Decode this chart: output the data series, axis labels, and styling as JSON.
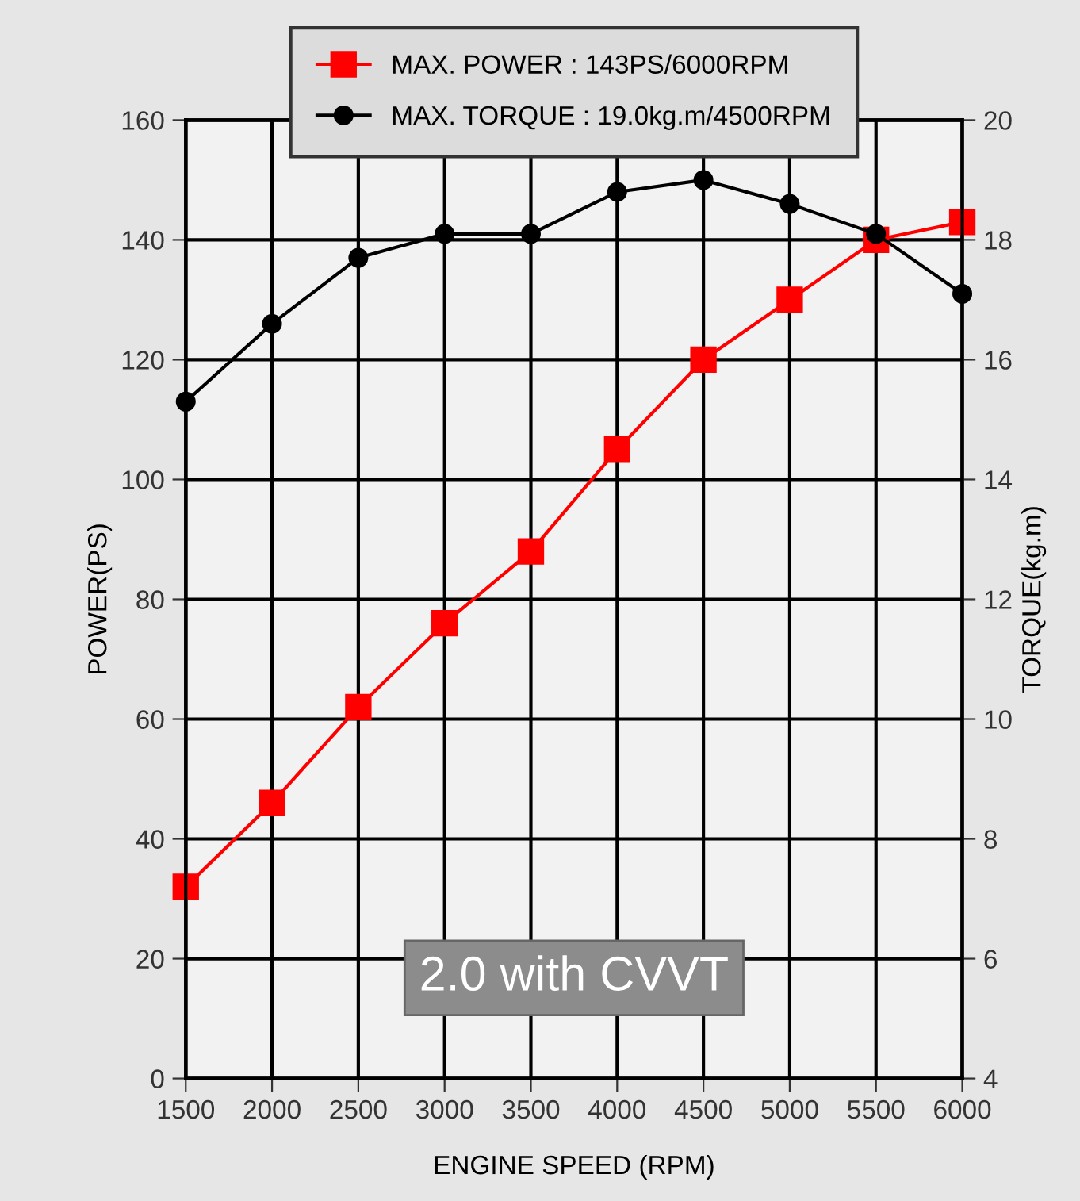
{
  "chart_data": {
    "type": "line",
    "xlabel": "ENGINE SPEED (RPM)",
    "ylabel": "POWER(PS)",
    "y2label": "TORQUE(kg.m)",
    "x": [
      1500,
      2000,
      2500,
      3000,
      3500,
      4000,
      4500,
      5000,
      5500,
      6000
    ],
    "series": [
      {
        "name": "MAX. POWER : 143PS/6000RPM",
        "color": "#ff0000",
        "marker": "square",
        "values": [
          32,
          46,
          62,
          76,
          88,
          105,
          120,
          130,
          140,
          143
        ]
      },
      {
        "name": "MAX. TORQUE : 19.0kg.m/4500RPM",
        "color": "#000000",
        "marker": "circle",
        "axis": "y2",
        "values": [
          15.3,
          16.6,
          17.7,
          18.1,
          18.1,
          18.8,
          19.0,
          18.6,
          18.1,
          17.1
        ]
      }
    ],
    "xlim": [
      1500,
      6000
    ],
    "xticks": [
      1500,
      2000,
      2500,
      3000,
      3500,
      4000,
      4500,
      5000,
      5500,
      6000
    ],
    "ylim": [
      0,
      160
    ],
    "yticks": [
      0,
      20,
      40,
      60,
      80,
      100,
      120,
      140,
      160
    ],
    "y2lim": [
      4,
      20
    ],
    "y2ticks": [
      4,
      6,
      8,
      10,
      12,
      14,
      16,
      18,
      20
    ],
    "annotations": [
      "2.0 with CVVT"
    ],
    "grid": true,
    "legend": "top",
    "line_style": "solid"
  }
}
